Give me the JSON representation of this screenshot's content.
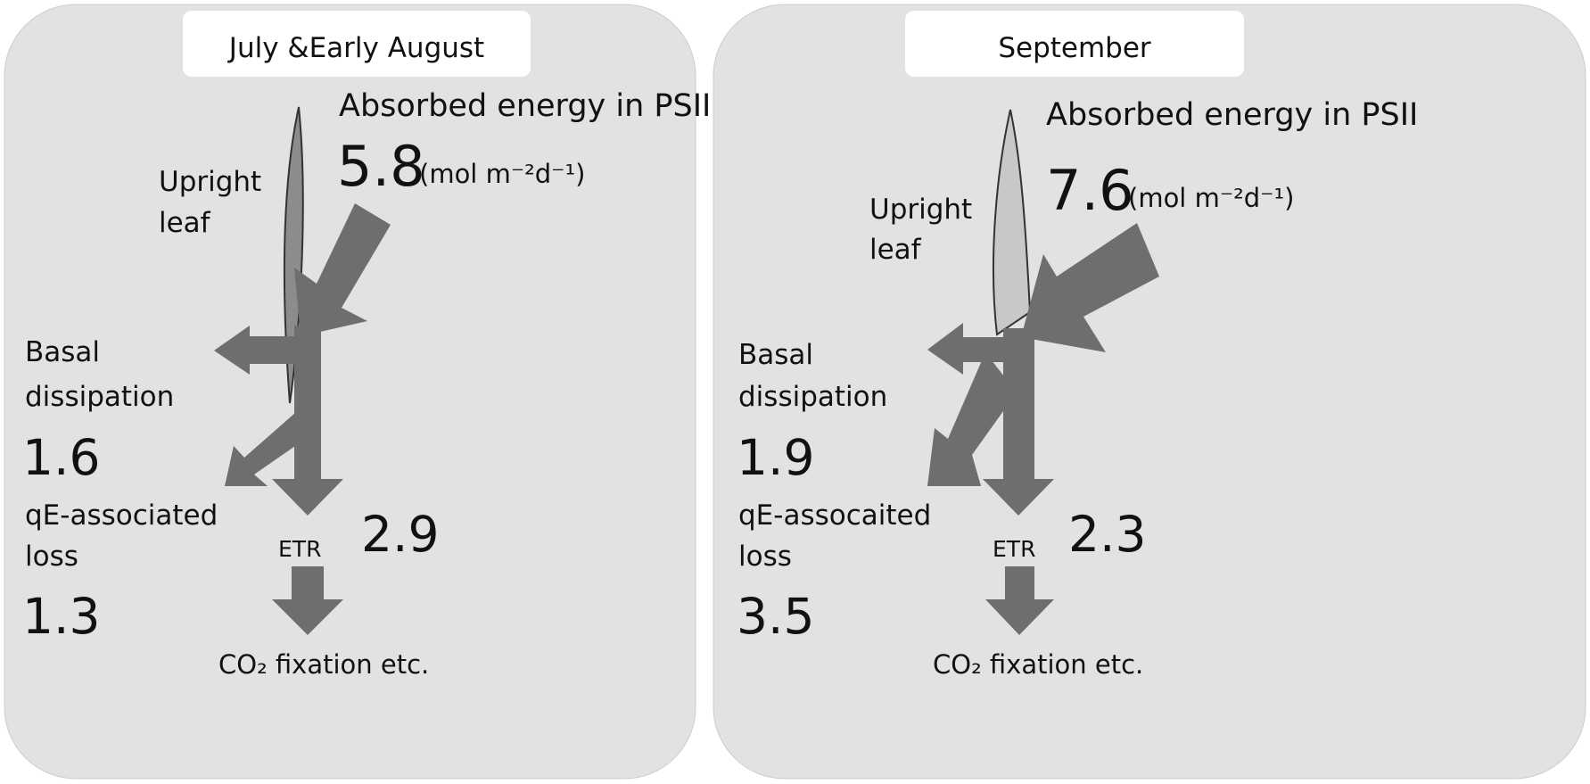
{
  "panels": [
    {
      "title": "July &Early August",
      "absorbed_label": "Absorbed energy in PSII",
      "absorbed_value": "5.8",
      "unit": "(mol m⁻²d⁻¹)",
      "leaf_label": [
        "Upright",
        "leaf"
      ],
      "basal_label": [
        "Basal",
        "dissipation"
      ],
      "basal_value": "1.6",
      "qe_label": [
        "qE-associated",
        "loss"
      ],
      "qe_value": "1.3",
      "etr_label": "ETR",
      "etr_value": "2.9",
      "output_label": "CO₂ fixation etc."
    },
    {
      "title": "September",
      "absorbed_label": "Absorbed energy in PSII",
      "absorbed_value": "7.6",
      "unit": "(mol m⁻²d⁻¹)",
      "leaf_label": [
        "Upright",
        "leaf"
      ],
      "basal_label": [
        "Basal",
        "dissipation"
      ],
      "basal_value": "1.9",
      "qe_label": [
        "qE-assocaited",
        "loss"
      ],
      "qe_value": "3.5",
      "etr_label": "ETR",
      "etr_value": "2.3",
      "output_label": "CO₂ fixation etc."
    }
  ]
}
